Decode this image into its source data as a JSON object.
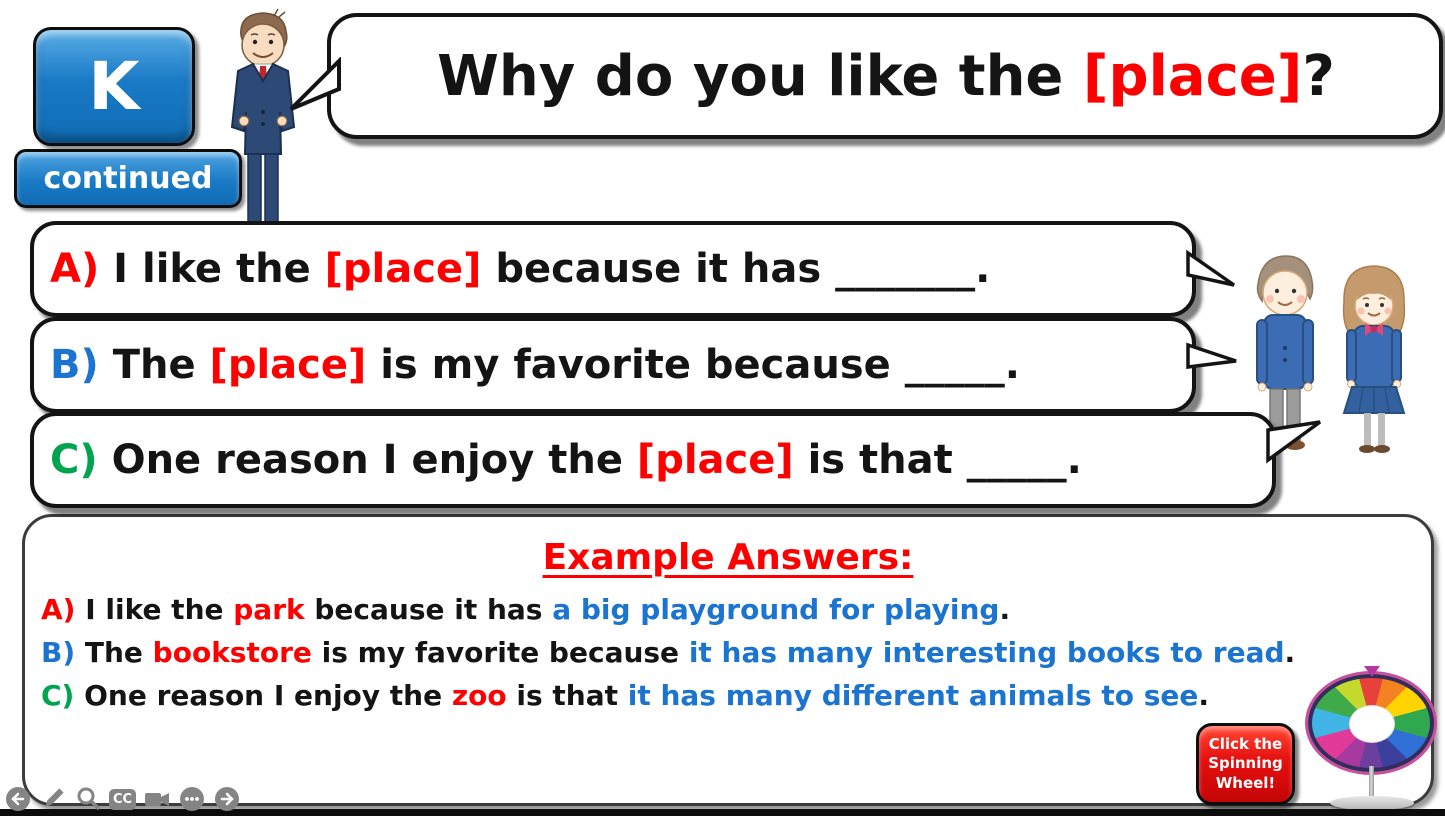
{
  "palette": {
    "black": "#141414",
    "red": "#ff0000",
    "blue": "#1b74cf",
    "green": "#00a44f",
    "white": "#ffffff"
  },
  "key": {
    "label": "K",
    "sub_label": "continued"
  },
  "title_bubble": {
    "segments": [
      {
        "t": "Why do you like the ",
        "c": "black"
      },
      {
        "t": "[place]",
        "c": "red"
      },
      {
        "t": "?",
        "c": "black"
      }
    ]
  },
  "prompt_bubbles": [
    {
      "id": "A",
      "segments": [
        {
          "t": "A)",
          "c": "red"
        },
        {
          "t": " I like the ",
          "c": "black"
        },
        {
          "t": "[place]",
          "c": "red"
        },
        {
          "t": " because it has _______.",
          "c": "black"
        }
      ]
    },
    {
      "id": "B",
      "segments": [
        {
          "t": "B)",
          "c": "blue"
        },
        {
          "t": " The ",
          "c": "black"
        },
        {
          "t": "[place]",
          "c": "red"
        },
        {
          "t": " is my favorite because _____.",
          "c": "black"
        }
      ]
    },
    {
      "id": "C",
      "segments": [
        {
          "t": "C)",
          "c": "green"
        },
        {
          "t": " One reason I enjoy the ",
          "c": "black"
        },
        {
          "t": "[place]",
          "c": "red"
        },
        {
          "t": " is that _____.",
          "c": "black"
        }
      ]
    }
  ],
  "example_box": {
    "title": "Example Answers:",
    "title_color": "red",
    "lines": [
      {
        "segments": [
          {
            "t": "A)",
            "c": "red"
          },
          {
            "t": " I like the ",
            "c": "black"
          },
          {
            "t": "park",
            "c": "red"
          },
          {
            "t": " because it has ",
            "c": "black"
          },
          {
            "t": "a big playground for playing",
            "c": "blue"
          },
          {
            "t": ".",
            "c": "black"
          }
        ]
      },
      {
        "segments": [
          {
            "t": "B)",
            "c": "blue"
          },
          {
            "t": " The ",
            "c": "black"
          },
          {
            "t": "bookstore",
            "c": "red"
          },
          {
            "t": " is my favorite because ",
            "c": "black"
          },
          {
            "t": "it has many interesting books to read",
            "c": "blue"
          },
          {
            "t": ".",
            "c": "black"
          }
        ]
      },
      {
        "segments": [
          {
            "t": "C)",
            "c": "green"
          },
          {
            "t": " One reason I enjoy the ",
            "c": "black"
          },
          {
            "t": "zoo",
            "c": "red"
          },
          {
            "t": " is that ",
            "c": "black"
          },
          {
            "t": "it has many different animals to see",
            "c": "blue"
          },
          {
            "t": ".",
            "c": "black"
          }
        ]
      }
    ]
  },
  "spin_button": {
    "label": "Click the Spinning Wheel!"
  },
  "wheel": {
    "segment_colors": [
      "#e8403a",
      "#f58220",
      "#ffd400",
      "#2fa84f",
      "#2f6fd6",
      "#3b3f9e",
      "#6c3f9e",
      "#a63a9e",
      "#e23a98",
      "#41b6e6",
      "#3faa4a",
      "#c5d92d"
    ],
    "ring_color": "#c94f9e",
    "border_color": "#322d5a",
    "pointer_color": "#b2379e",
    "hub_color": "#ffffff"
  },
  "toolbar": {
    "captions_label": "CC",
    "items": [
      "back",
      "draw",
      "zoom",
      "captions",
      "record",
      "more",
      "next"
    ]
  }
}
